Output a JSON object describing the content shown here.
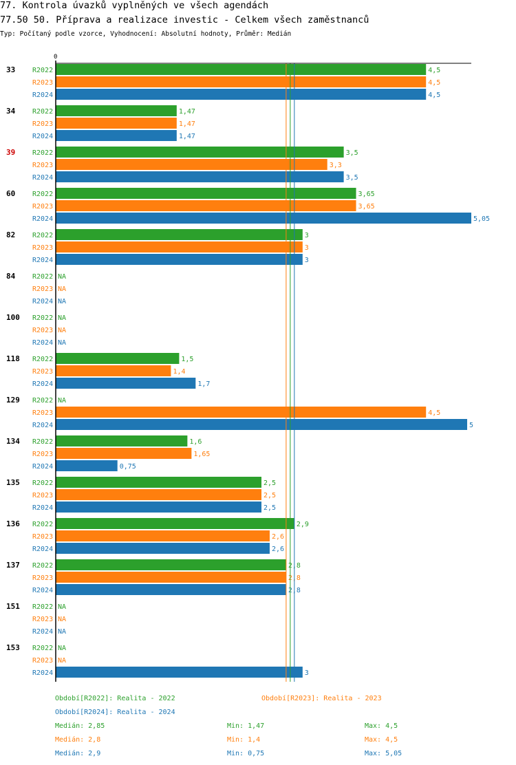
{
  "header": {
    "title": "77. Kontrola úvazků vyplněných ve všech agendách",
    "subtitle": "77.50 50. Příprava a realizace investic - Celkem všech zaměstnanců",
    "type_line": "Typ: Počítaný podle vzorce, Vyhodnocení: Absolutní hodnoty, Průměr: Medián"
  },
  "chart_data": {
    "type": "bar",
    "orientation": "horizontal",
    "axis_zero_label": "0",
    "xlim": [
      0,
      5.05
    ],
    "na_label": "NA",
    "colors": {
      "R2022": "#2ca02c",
      "R2023": "#ff7f0e",
      "R2024": "#1f77b4",
      "highlight": "#cc0000"
    },
    "categories": [
      {
        "label": "33",
        "highlight": false
      },
      {
        "label": "34",
        "highlight": false
      },
      {
        "label": "39",
        "highlight": true
      },
      {
        "label": "60",
        "highlight": false
      },
      {
        "label": "82",
        "highlight": false
      },
      {
        "label": "84",
        "highlight": false
      },
      {
        "label": "100",
        "highlight": false
      },
      {
        "label": "118",
        "highlight": false
      },
      {
        "label": "129",
        "highlight": false
      },
      {
        "label": "134",
        "highlight": false
      },
      {
        "label": "135",
        "highlight": false
      },
      {
        "label": "136",
        "highlight": false
      },
      {
        "label": "137",
        "highlight": false
      },
      {
        "label": "151",
        "highlight": false
      },
      {
        "label": "153",
        "highlight": false
      }
    ],
    "series": [
      {
        "name": "R2022",
        "values": [
          4.5,
          1.47,
          3.5,
          3.65,
          3,
          null,
          null,
          1.5,
          null,
          1.6,
          2.5,
          2.9,
          2.8,
          null,
          null
        ],
        "labels": [
          "4,5",
          "1,47",
          "3,5",
          "3,65",
          "3",
          "NA",
          "NA",
          "1,5",
          "NA",
          "1,6",
          "2,5",
          "2,9",
          "2,8",
          "NA",
          "NA"
        ]
      },
      {
        "name": "R2023",
        "values": [
          4.5,
          1.47,
          3.3,
          3.65,
          3,
          null,
          null,
          1.4,
          4.5,
          1.65,
          2.5,
          2.6,
          2.8,
          null,
          null
        ],
        "labels": [
          "4,5",
          "1,47",
          "3,3",
          "3,65",
          "3",
          "NA",
          "NA",
          "1,4",
          "4,5",
          "1,65",
          "2,5",
          "2,6",
          "2,8",
          "NA",
          "NA"
        ]
      },
      {
        "name": "R2024",
        "values": [
          4.5,
          1.47,
          3.5,
          5.05,
          3,
          null,
          null,
          1.7,
          5,
          0.75,
          2.5,
          2.6,
          2.8,
          null,
          3
        ],
        "labels": [
          "4,5",
          "1,47",
          "3,5",
          "5,05",
          "3",
          "NA",
          "NA",
          "1,7",
          "5",
          "0,75",
          "2,5",
          "2,6",
          "2,8",
          "NA",
          "3"
        ]
      }
    ],
    "median_lines": [
      {
        "series": "R2022",
        "value": 2.85
      },
      {
        "series": "R2023",
        "value": 2.8
      },
      {
        "series": "R2024",
        "value": 2.9
      }
    ]
  },
  "legend": {
    "periods": [
      {
        "series": "R2022",
        "text": "Období[R2022]: Realita - 2022"
      },
      {
        "series": "R2023",
        "text": "Období[R2023]: Realita - 2023"
      },
      {
        "series": "R2024",
        "text": "Období[R2024]: Realita - 2024"
      }
    ],
    "stats": [
      {
        "series": "R2022",
        "median": "Medián: 2,85",
        "min": "Min: 1,47",
        "max": "Max: 4,5"
      },
      {
        "series": "R2023",
        "median": "Medián: 2,8",
        "min": "Min: 1,4",
        "max": "Max: 4,5"
      },
      {
        "series": "R2024",
        "median": "Medián: 2,9",
        "min": "Min: 0,75",
        "max": "Max: 5,05"
      }
    ]
  }
}
